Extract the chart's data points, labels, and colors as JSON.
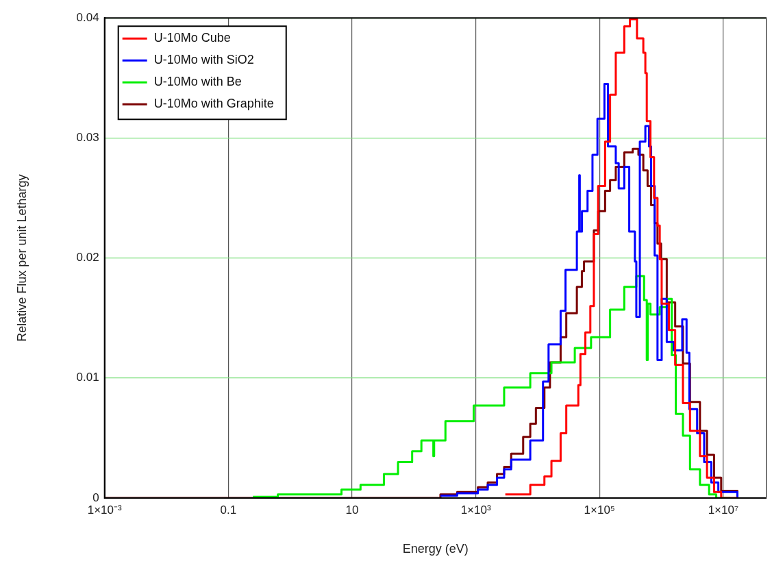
{
  "chart_data": {
    "type": "step",
    "xlabel": "Energy (eV)",
    "ylabel": "Relative Flux per unit Lethargy",
    "log": "x",
    "grid": true,
    "legend": "top left",
    "xlim": [
      0.001,
      50000000
    ],
    "xticks": [
      {
        "value": 0.001,
        "label": "1×10⁻³"
      },
      0.1,
      10,
      {
        "value": 1000,
        "label": "1×10³"
      },
      {
        "value": 100000,
        "label": "1×10⁵"
      },
      {
        "value": 10000000,
        "label": "1×10⁷"
      }
    ],
    "ylim": [
      0,
      0.04
    ],
    "yticks": [
      0,
      0.01,
      0.02,
      0.03,
      0.04
    ],
    "series": [
      {
        "name": "U-10Mo Cube",
        "color": "#ff0000",
        "x": [
          3000,
          7600,
          12850,
          16700,
          23500,
          29000,
          45400,
          49100,
          59000,
          71000,
          81000,
          95000,
          123000,
          148000,
          183000,
          251000,
          310000,
          403000,
          510000,
          550000,
          580000,
          665000,
          760000,
          865000,
          940000,
          1010000,
          1320000,
          1670000,
          2230000,
          2900000,
          4200000,
          5460000,
          7100000,
          9250000,
          16900000
        ],
        "values": [
          0.0003,
          0.0011,
          0.0018,
          0.0031,
          0.0054,
          0.0077,
          0.0094,
          0.012,
          0.0138,
          0.016,
          0.022,
          0.026,
          0.0297,
          0.0336,
          0.0371,
          0.0393,
          0.0399,
          0.0383,
          0.0371,
          0.0354,
          0.0314,
          0.0284,
          0.025,
          0.0227,
          0.0199,
          0.0162,
          0.014,
          0.0111,
          0.0079,
          0.0056,
          0.0035,
          0.0017,
          0.0005,
          0,
          0
        ]
      },
      {
        "name": "U-10Mo with SiO2",
        "color": "#0000ff",
        "x": [
          268,
          500,
          1080,
          1560,
          2200,
          2870,
          3730,
          7590,
          12200,
          15000,
          23500,
          28200,
          43000,
          47000,
          47900,
          52000,
          64000,
          76900,
          92500,
          120000,
          137000,
          183000,
          204000,
          251000,
          302000,
          373000,
          393000,
          448000,
          550000,
          631000,
          682000,
          778000,
          865000,
          1010000,
          1220000,
          1580000,
          2170000,
          2550000,
          2830000,
          3780000,
          4910000,
          6400000,
          8320000,
          16900000
        ],
        "values": [
          0.0002,
          0.0004,
          0.0007,
          0.0011,
          0.0017,
          0.0024,
          0.0032,
          0.0048,
          0.0097,
          0.0128,
          0.0156,
          0.019,
          0.0222,
          0.0269,
          0.0222,
          0.0239,
          0.0256,
          0.0286,
          0.0316,
          0.0345,
          0.0293,
          0.0279,
          0.0258,
          0.0276,
          0.0222,
          0.0197,
          0.0151,
          0.0297,
          0.031,
          0.0293,
          0.026,
          0.0202,
          0.0115,
          0.0166,
          0.013,
          0.0123,
          0.0149,
          0.0121,
          0.0074,
          0.0054,
          0.003,
          0.0013,
          0.0005,
          0
        ]
      },
      {
        "name": "U-10Mo with Be",
        "color": "#00ee00",
        "x": [
          0.25,
          0.63,
          6.74,
          13.7,
          32.7,
          55.3,
          93.6,
          132,
          206,
          212,
          323,
          925,
          2870,
          7590,
          16700,
          39800,
          72900,
          148000,
          251000,
          393000,
          525000,
          580000,
          600000,
          665000,
          940000,
          1220000,
          1470000,
          1710000,
          2230000,
          2900000,
          4200000,
          5900000,
          7690000,
          13000000
        ],
        "values": [
          0.0001,
          0.0003,
          0.0007,
          0.0011,
          0.002,
          0.003,
          0.0039,
          0.0048,
          0.0035,
          0.0048,
          0.0064,
          0.0077,
          0.0092,
          0.0104,
          0.0113,
          0.0125,
          0.0134,
          0.0157,
          0.0176,
          0.0185,
          0.0165,
          0.0115,
          0.0162,
          0.0153,
          0.0159,
          0.0166,
          0.0119,
          0.007,
          0.0052,
          0.0024,
          0.0011,
          0.0003,
          0,
          0
        ]
      },
      {
        "name": "U-10Mo with Graphite",
        "color": "#7a0000",
        "x": [
          0.001,
          268,
          500,
          1080,
          1560,
          2200,
          2870,
          3730,
          5830,
          7590,
          9360,
          12850,
          15800,
          23500,
          29000,
          43000,
          51800,
          56100,
          81000,
          95000,
          123000,
          148000,
          183000,
          251000,
          344000,
          425000,
          510000,
          598000,
          682000,
          778000,
          865000,
          987000,
          1220000,
          1670000,
          2230000,
          2900000,
          4200000,
          5460000,
          7100000,
          9250000,
          16900000
        ],
        "values": [
          0,
          0.0003,
          0.0005,
          0.0009,
          0.0013,
          0.002,
          0.0026,
          0.0037,
          0.0051,
          0.0062,
          0.0075,
          0.0092,
          0.0113,
          0.0134,
          0.0154,
          0.0176,
          0.0189,
          0.0197,
          0.0223,
          0.0239,
          0.0256,
          0.0265,
          0.0276,
          0.0288,
          0.0291,
          0.0286,
          0.0273,
          0.026,
          0.0244,
          0.0229,
          0.0212,
          0.0199,
          0.0163,
          0.0143,
          0.0112,
          0.008,
          0.0056,
          0.0036,
          0.0017,
          0.0006,
          0
        ]
      }
    ]
  }
}
